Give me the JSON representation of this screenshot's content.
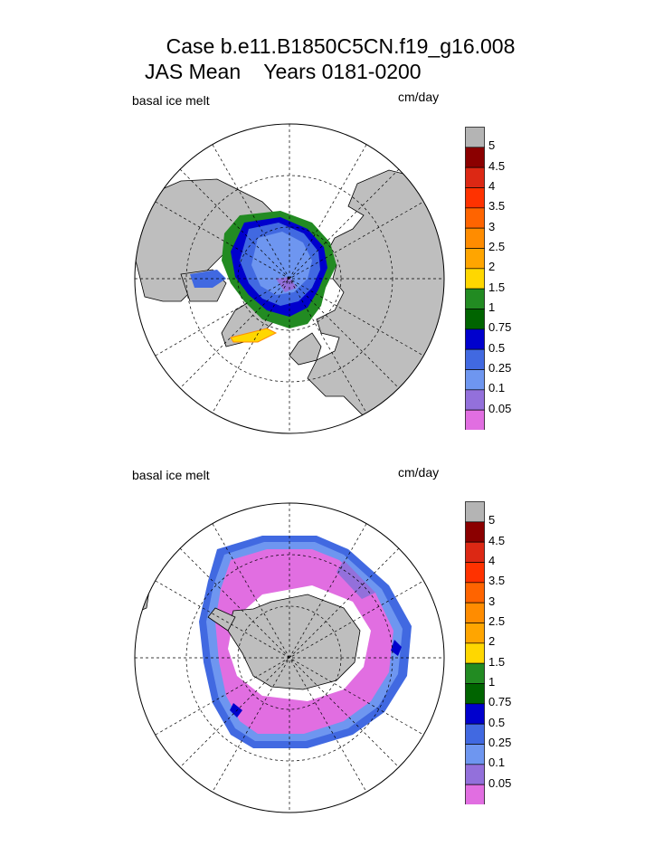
{
  "figure": {
    "title_line1": "Case b.e11.B1850C5CN.f19_g16.008",
    "title_line2": "JAS Mean    Years 0181-0200"
  },
  "panels": [
    {
      "id": "north",
      "label": "basal ice melt",
      "units": "cm/day",
      "hemisphere": "Northern"
    },
    {
      "id": "south",
      "label": "basal ice melt",
      "units": "cm/day",
      "hemisphere": "Southern"
    }
  ],
  "colors": {
    "land": "#bebebe",
    "ocean": "#ffffff",
    "levels": [
      "#e16ee1",
      "#9370db",
      "#6e96f0",
      "#4169e1",
      "#0000cd",
      "#006400",
      "#228b22",
      "#ffd700",
      "#ffa500",
      "#ff8c00",
      "#ff6400",
      "#ff3200",
      "#dc2814",
      "#8b0000",
      "#b4b4b4"
    ]
  },
  "chart_data": [
    {
      "type": "heatmap",
      "projection": "polar stereographic",
      "title": "basal ice melt",
      "units": "cm/day",
      "hemisphere": "north",
      "contour_levels": [
        0.05,
        0.1,
        0.25,
        0.5,
        0.75,
        1,
        1.5,
        2,
        2.5,
        3,
        3.5,
        4,
        4.5,
        5
      ],
      "colorbar_labels": [
        "5",
        "4.5",
        "4",
        "3.5",
        "3",
        "2.5",
        "2",
        "1.5",
        "1",
        "0.75",
        "0.5",
        "0.25",
        "0.1",
        "0.05"
      ]
    },
    {
      "type": "heatmap",
      "projection": "polar stereographic",
      "title": "basal ice melt",
      "units": "cm/day",
      "hemisphere": "south",
      "contour_levels": [
        0.05,
        0.1,
        0.25,
        0.5,
        0.75,
        1,
        1.5,
        2,
        2.5,
        3,
        3.5,
        4,
        4.5,
        5
      ],
      "colorbar_labels": [
        "5",
        "4.5",
        "4",
        "3.5",
        "3",
        "2.5",
        "2",
        "1.5",
        "1",
        "0.75",
        "0.5",
        "0.25",
        "0.1",
        "0.05"
      ]
    }
  ]
}
